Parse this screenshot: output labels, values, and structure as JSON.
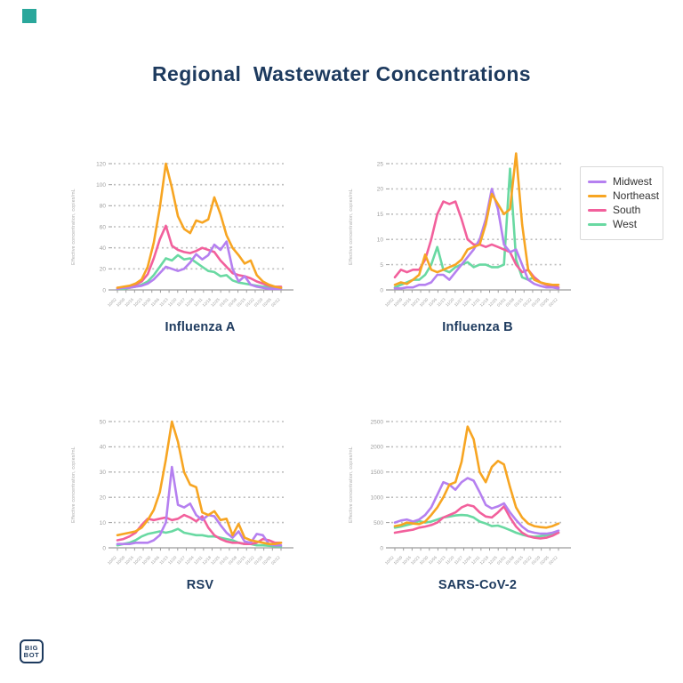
{
  "page": {
    "title": "Regional  Wastewater Concentrations",
    "title_color": "#1D3A5E",
    "background": "#ffffff"
  },
  "brand": {
    "accent_square_color": "#2AA79B",
    "logo_line1": "BIG",
    "logo_line2": "BOT",
    "logo_color": "#1D3A5E"
  },
  "legend": {
    "position": "top-right",
    "items": [
      {
        "label": "Midwest",
        "color": "#B580F0"
      },
      {
        "label": "Northeast",
        "color": "#F7A522"
      },
      {
        "label": "South",
        "color": "#F2609C"
      },
      {
        "label": "West",
        "color": "#69D9A2"
      }
    ]
  },
  "axes": {
    "y_label": "Effective concentration, copies/mL",
    "grid": "dotted horizontal",
    "grid_color": "#BDBDBD",
    "axis_color": "#9C9C9C",
    "tick_label_color": "#9E9E9E",
    "x_ticks": [
      "10/02",
      "10/09",
      "10/16",
      "10/23",
      "10/30",
      "11/06",
      "11/13",
      "11/20",
      "11/27",
      "12/04",
      "12/11",
      "12/18",
      "12/25",
      "01/01",
      "01/08",
      "01/15",
      "01/22",
      "01/29",
      "02/05",
      "02/12"
    ]
  },
  "chart_data": [
    {
      "type": "line",
      "title": "Influenza A",
      "ylabel": "Effective concentration, copies/mL",
      "ylim": [
        0,
        120
      ],
      "yticks": [
        0,
        20,
        40,
        60,
        80,
        100,
        120
      ],
      "series": [
        {
          "name": "Midwest",
          "color": "#B580F0",
          "values": [
            1,
            2,
            2,
            3,
            4,
            6,
            10,
            16,
            22,
            20,
            18,
            20,
            26,
            34,
            29,
            33,
            43,
            38,
            46,
            20,
            8,
            13,
            5,
            3,
            2,
            1,
            1,
            1
          ]
        },
        {
          "name": "Northeast",
          "color": "#F7A522",
          "values": [
            2,
            3,
            4,
            6,
            10,
            22,
            45,
            78,
            120,
            97,
            70,
            58,
            54,
            66,
            64,
            67,
            88,
            72,
            52,
            40,
            33,
            25,
            28,
            14,
            8,
            5,
            3,
            2
          ]
        },
        {
          "name": "South",
          "color": "#F2609C",
          "values": [
            2,
            2,
            3,
            5,
            8,
            15,
            30,
            48,
            61,
            42,
            38,
            36,
            35,
            37,
            40,
            38,
            36,
            28,
            22,
            16,
            14,
            13,
            11,
            8,
            6,
            4,
            3,
            3
          ]
        },
        {
          "name": "West",
          "color": "#69D9A2",
          "values": [
            1,
            1,
            2,
            3,
            5,
            8,
            14,
            22,
            30,
            28,
            33,
            29,
            30,
            26,
            22,
            18,
            17,
            13,
            14,
            9,
            7,
            6,
            5,
            4,
            3,
            3,
            2,
            2
          ]
        }
      ]
    },
    {
      "type": "line",
      "title": "Influenza B",
      "ylabel": "Effective concentration, copies/mL",
      "ylim": [
        0,
        25
      ],
      "yticks": [
        0,
        5,
        10,
        15,
        20,
        25
      ],
      "series": [
        {
          "name": "Midwest",
          "color": "#B580F0",
          "values": [
            0.3,
            0.3,
            0.5,
            0.5,
            1,
            1,
            1.5,
            3,
            3,
            2,
            3.5,
            5,
            6.5,
            8,
            10,
            14,
            20,
            16,
            9,
            7.5,
            8,
            5,
            2,
            1.2,
            0.8,
            0.5,
            0.5,
            0.3
          ]
        },
        {
          "name": "Northeast",
          "color": "#F7A522",
          "values": [
            1,
            1.5,
            1.2,
            2,
            3,
            7,
            4,
            3.5,
            4,
            4.5,
            5,
            6,
            8,
            8.5,
            9,
            13,
            19,
            17,
            15,
            16,
            27,
            13,
            4,
            2,
            1.5,
            1.2,
            1,
            1
          ]
        },
        {
          "name": "South",
          "color": "#F2609C",
          "values": [
            2.5,
            4,
            3.5,
            4,
            4,
            6,
            10,
            15,
            17.5,
            17,
            17.5,
            14,
            10,
            9,
            9,
            8.5,
            9,
            8.5,
            8,
            7.5,
            5,
            3.5,
            4,
            2.5,
            1.5,
            1,
            0.8,
            0.5
          ]
        },
        {
          "name": "West",
          "color": "#69D9A2",
          "values": [
            0.5,
            1,
            1.5,
            2,
            2,
            3,
            5,
            8.5,
            4,
            3.5,
            4.5,
            5,
            5.5,
            4.5,
            5,
            5,
            4.5,
            4.5,
            5,
            24,
            6,
            2.5,
            2,
            2.5,
            1.5,
            1,
            0.8,
            0.5
          ]
        }
      ]
    },
    {
      "type": "line",
      "title": "RSV",
      "ylabel": "Effective concentration, copies/mL",
      "ylim": [
        0,
        50
      ],
      "yticks": [
        0,
        10,
        20,
        30,
        40,
        50
      ],
      "series": [
        {
          "name": "Midwest",
          "color": "#B580F0",
          "values": [
            1.5,
            1.5,
            1.5,
            2,
            2,
            2,
            3,
            5,
            10,
            32,
            17,
            16,
            17.5,
            13,
            11,
            13,
            12.5,
            9,
            6,
            4,
            6.5,
            2.5,
            2,
            5.5,
            5,
            1.5,
            1,
            1
          ]
        },
        {
          "name": "Northeast",
          "color": "#F7A522",
          "values": [
            5,
            5.5,
            6,
            6.5,
            8,
            11,
            15,
            22,
            35,
            50,
            42,
            30,
            25,
            24,
            14,
            13,
            14.5,
            11,
            11.5,
            5,
            9.5,
            4,
            3,
            2.5,
            2,
            1.5,
            1.5,
            2
          ]
        },
        {
          "name": "South",
          "color": "#F2609C",
          "values": [
            3,
            3.5,
            4.5,
            6,
            9,
            11.5,
            11,
            11.5,
            12,
            11,
            11.5,
            13,
            12,
            10.5,
            12.5,
            8,
            5,
            3.5,
            2.5,
            2,
            2,
            1.5,
            1.5,
            2,
            3.5,
            3,
            2,
            2
          ]
        },
        {
          "name": "West",
          "color": "#69D9A2",
          "values": [
            1,
            1.5,
            2,
            3,
            4.5,
            5.5,
            6,
            6.5,
            6,
            6.5,
            7.5,
            6,
            5.5,
            5,
            5,
            4.5,
            4.5,
            4,
            3.5,
            3,
            2,
            1.5,
            1.5,
            1,
            1,
            0.8,
            0.6,
            0.5
          ]
        }
      ]
    },
    {
      "type": "line",
      "title": "SARS-CoV-2",
      "ylabel": "Effective concentration, copies/mL",
      "ylim": [
        0,
        2500
      ],
      "yticks": [
        0,
        500,
        1000,
        1500,
        2000,
        2500
      ],
      "series": [
        {
          "name": "Midwest",
          "color": "#B580F0",
          "values": [
            500,
            540,
            560,
            520,
            560,
            650,
            800,
            1050,
            1300,
            1250,
            1150,
            1300,
            1380,
            1330,
            1100,
            850,
            780,
            820,
            880,
            700,
            550,
            420,
            330,
            300,
            280,
            280,
            300,
            340
          ]
        },
        {
          "name": "Northeast",
          "color": "#F7A522",
          "values": [
            430,
            450,
            500,
            480,
            470,
            520,
            650,
            800,
            1000,
            1250,
            1300,
            1700,
            2400,
            2150,
            1500,
            1300,
            1600,
            1720,
            1650,
            1200,
            800,
            600,
            480,
            430,
            410,
            400,
            430,
            480
          ]
        },
        {
          "name": "South",
          "color": "#F2609C",
          "values": [
            300,
            320,
            340,
            360,
            400,
            420,
            450,
            500,
            600,
            650,
            700,
            800,
            850,
            820,
            700,
            620,
            600,
            700,
            820,
            600,
            420,
            300,
            230,
            200,
            185,
            200,
            240,
            300
          ]
        },
        {
          "name": "West",
          "color": "#69D9A2",
          "values": [
            400,
            420,
            450,
            480,
            530,
            500,
            520,
            560,
            600,
            620,
            640,
            650,
            640,
            600,
            520,
            480,
            430,
            440,
            400,
            350,
            300,
            260,
            230,
            220,
            230,
            250,
            270,
            300
          ]
        }
      ]
    }
  ]
}
